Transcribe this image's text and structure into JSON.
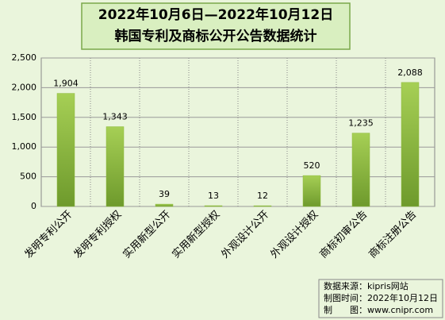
{
  "chart_data": {
    "type": "bar",
    "title": "2022年10月6日—2022年10月12日",
    "subtitle": "韩国专利及商标公开公告数据统计",
    "categories": [
      "发明专利公开",
      "发明专利授权",
      "实用新型公开",
      "实用新型授权",
      "外观设计公开",
      "外观设计授权",
      "商标初审公告",
      "商标注册公告"
    ],
    "values": [
      1904,
      1343,
      39,
      13,
      12,
      520,
      1235,
      2088
    ],
    "value_labels": [
      "1,904",
      "1,343",
      "39",
      "13",
      "12",
      "520",
      "1,235",
      "2,088"
    ],
    "color": "#8dbb3c",
    "ylim": [
      0,
      2500
    ],
    "yticks": [
      0,
      500,
      {
        "value": 1000,
        "label": "1,000"
      },
      {
        "value": 1500,
        "label": "1,500"
      },
      {
        "value": 2000,
        "label": "2,000"
      },
      {
        "value": 2500,
        "label": "2,500"
      }
    ],
    "grid": true,
    "notes": [
      "数据来源：kipris网站",
      "制图时间：2022年10月12日",
      "制　　图：www.cnipr.com"
    ]
  }
}
